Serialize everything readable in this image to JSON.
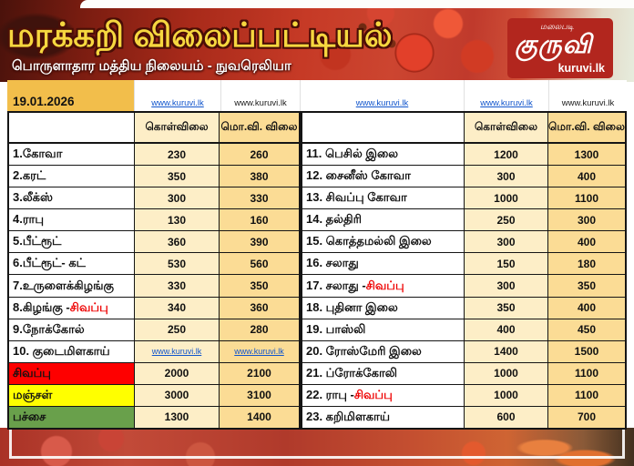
{
  "header": {
    "title": "மரக்கறி விலைப்பட்டியல்",
    "subtitle": "பொருளாதார மத்திய நிலையம் - நுவரெலியா",
    "logo": {
      "tagline": "மலைபடி",
      "brand": "குருவி",
      "site": "kuruvi.lk"
    }
  },
  "table": {
    "date": "19.01.2026",
    "link_cells": [
      {
        "text": "www.kuruvi.lk",
        "is_link": true
      },
      {
        "text": "www.kuruvi.lk",
        "is_link": false
      },
      {
        "text": "www.kuruvi.lk",
        "is_link": true
      },
      {
        "text": "www.kuruvi.lk",
        "is_link": true
      },
      {
        "text": "www.kuruvi.lk",
        "is_link": false
      }
    ],
    "column_headers": {
      "wholesale": "கொள்விலை",
      "retail": "மொ.வி. விலை"
    },
    "left_rows": [
      {
        "label": "1.கோவா",
        "wholesale": "230",
        "retail": "260"
      },
      {
        "label": "2.கரட்",
        "wholesale": "350",
        "retail": "380"
      },
      {
        "label": "3.லீக்ஸ்",
        "wholesale": "300",
        "retail": "330"
      },
      {
        "label": "4.ராபு",
        "wholesale": "130",
        "retail": "160"
      },
      {
        "label": "5.பீட்ரூட்",
        "wholesale": "360",
        "retail": "390"
      },
      {
        "label": "6.பீட்ரூட்- கட்",
        "wholesale": "530",
        "retail": "560"
      },
      {
        "label": "7.உருளைக்கிழங்கு",
        "wholesale": "330",
        "retail": "350"
      },
      {
        "label": "8.கிழங்கு - ",
        "suffix": "சிவப்பு",
        "wholesale": "340",
        "retail": "360"
      },
      {
        "label": "9.நோக்கோல்",
        "wholesale": "250",
        "retail": "280"
      },
      {
        "label": "10. குடைமிளகாய்",
        "wholesale": "www.kuruvi.lk",
        "retail": "www.kuruvi.lk",
        "is_link": true
      },
      {
        "label": "சிவப்பு",
        "label_bg": "#FE0000",
        "wholesale": "2000",
        "retail": "2100"
      },
      {
        "label": "மஞ்சள்",
        "label_bg": "#FFFF00",
        "wholesale": "3000",
        "retail": "3100"
      },
      {
        "label": "பச்சை",
        "label_bg": "#69A04B",
        "wholesale": "1300",
        "retail": "1400"
      }
    ],
    "right_rows": [
      {
        "label": "11. பெசில் இலை",
        "wholesale": "1200",
        "retail": "1300"
      },
      {
        "label": "12. சைனீஸ் கோவா",
        "wholesale": "300",
        "retail": "400"
      },
      {
        "label": "13. சிவப்பு கோவா",
        "wholesale": "1000",
        "retail": "1100"
      },
      {
        "label": "14. தல்திரி",
        "wholesale": "250",
        "retail": "300"
      },
      {
        "label": "15. கொத்தமல்லி இலை",
        "wholesale": "300",
        "retail": "400"
      },
      {
        "label": "16. சலாது",
        "wholesale": "150",
        "retail": "180"
      },
      {
        "label": "17. சலாது - ",
        "suffix": "சிவப்பு",
        "wholesale": "300",
        "retail": "350"
      },
      {
        "label": "18. புதினா இலை",
        "wholesale": "350",
        "retail": "400"
      },
      {
        "label": "19. பாஸ்லி",
        "wholesale": "400",
        "retail": "450"
      },
      {
        "label": "20. ரோஸ்மேரி இலை",
        "wholesale": "1400",
        "retail": "1500"
      },
      {
        "label": "21. ப்ரோக்கோலி",
        "wholesale": "1000",
        "retail": "1100"
      },
      {
        "label": "22. ராபு - ",
        "suffix": "சிவப்பு",
        "wholesale": "1000",
        "retail": "1100"
      },
      {
        "label": "23. கறிமிளகாய்",
        "wholesale": "600",
        "retail": "700"
      }
    ]
  },
  "colors": {
    "date_cell": "#F2BE4B",
    "wholesale_col": "#FDEEC7",
    "retail_col": "#FBDC95",
    "row_red": "#FE0000",
    "row_yellow": "#FFFF00",
    "row_green": "#69A04B",
    "red_text": "#EE0000",
    "link_blue": "#1155CC",
    "logo_red": "#B2261E",
    "title_yellow": "#F6D73F"
  }
}
